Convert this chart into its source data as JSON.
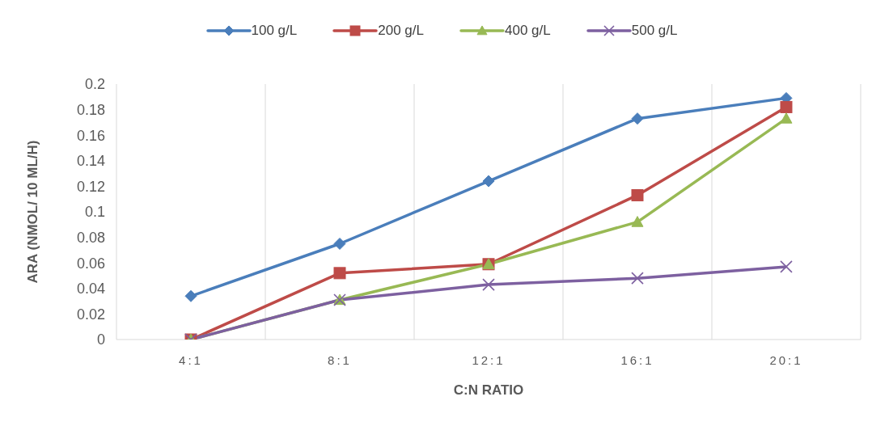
{
  "chart_data": {
    "type": "line",
    "xlabel": "C:N RATIO",
    "ylabel": "ARA (NMOL/ 10 ML/H)",
    "categories": [
      "4:1",
      "8:1",
      "12:1",
      "16:1",
      "20:1"
    ],
    "series": [
      {
        "name": "100 g/L",
        "color": "#4a7ebb",
        "marker": "diamond",
        "values": [
          0.034,
          0.075,
          0.124,
          0.173,
          0.189
        ]
      },
      {
        "name": "200 g/L",
        "color": "#be4b48",
        "marker": "square",
        "values": [
          0,
          0.052,
          0.059,
          0.113,
          0.182
        ]
      },
      {
        "name": "400 g/L",
        "color": "#98b954",
        "marker": "triangle",
        "values": [
          0,
          0.031,
          0.059,
          0.092,
          0.173
        ]
      },
      {
        "name": "500 g/L",
        "color": "#7d60a0",
        "marker": "cross",
        "values": [
          0,
          0.031,
          0.043,
          0.048,
          0.057
        ]
      }
    ],
    "ylim": [
      0,
      0.2
    ],
    "yticks": [
      0,
      0.02,
      0.04,
      0.06,
      0.08,
      0.1,
      0.12,
      0.14,
      0.16,
      0.18,
      0.2
    ],
    "grid": "x",
    "legend": "top",
    "line_style": "solid"
  }
}
